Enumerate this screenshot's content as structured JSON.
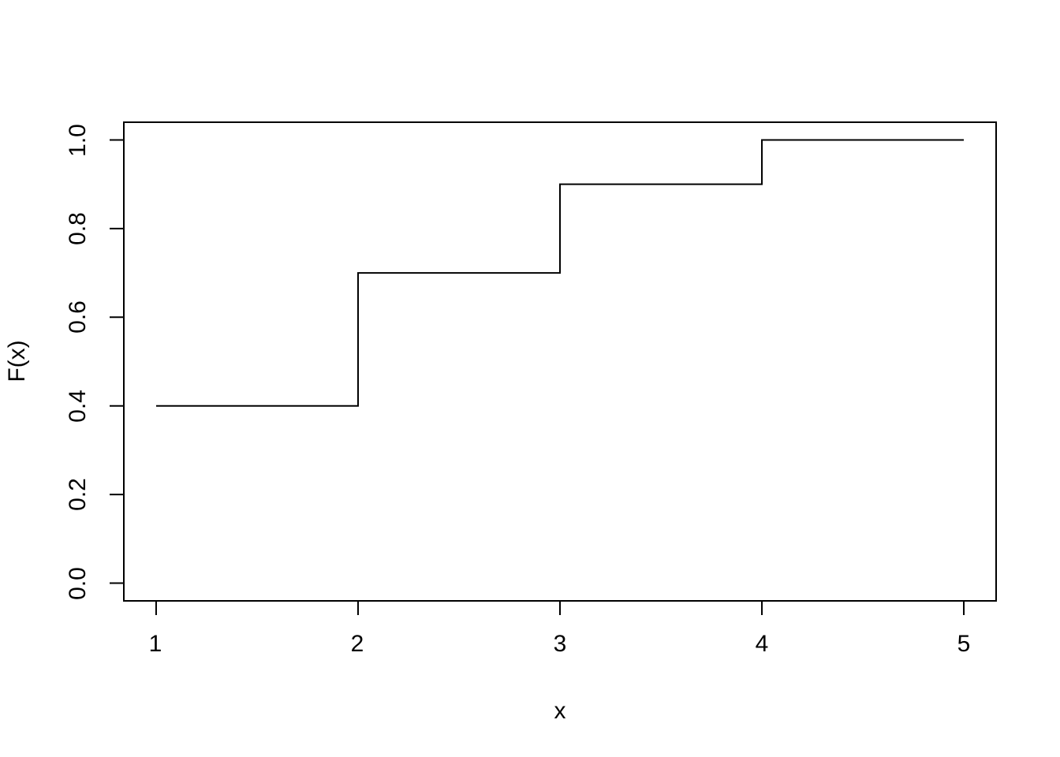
{
  "figure": {
    "background_color": "#ffffff",
    "axis_color": "#000000"
  },
  "chart_data": {
    "type": "line",
    "subtype": "step-function-cdf",
    "title": "",
    "xlabel": "x",
    "ylabel": "F(x)",
    "xlim": [
      0.84,
      5.16
    ],
    "ylim": [
      -0.04,
      1.04
    ],
    "xticks": [
      1,
      2,
      3,
      4,
      5
    ],
    "xtick_labels": [
      "1",
      "2",
      "3",
      "4",
      "5"
    ],
    "yticks": [
      0.0,
      0.2,
      0.4,
      0.6,
      0.8,
      1.0
    ],
    "ytick_labels": [
      "0.0",
      "0.2",
      "0.4",
      "0.6",
      "0.8",
      "1.0"
    ],
    "grid": false,
    "legend": null,
    "line_color": "#000000",
    "line_width": 2,
    "series": [
      {
        "name": "F(x)",
        "step": "post",
        "x": [
          1,
          2,
          3,
          4,
          5
        ],
        "y": [
          0.4,
          0.7,
          0.9,
          1.0,
          1.0
        ]
      }
    ]
  }
}
